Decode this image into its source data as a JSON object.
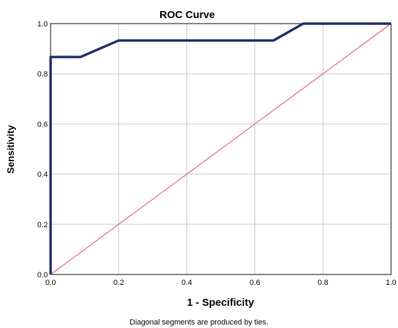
{
  "chart_data": {
    "type": "line",
    "title": "ROC Curve",
    "xlabel": "1 - Specificity",
    "ylabel": "Sensitivity",
    "footnote": "Diagonal segments are produced by ties.",
    "xlim": [
      0,
      1
    ],
    "ylim": [
      0,
      1
    ],
    "x_ticks": [
      0.0,
      0.2,
      0.4,
      0.6,
      0.8,
      1.0
    ],
    "y_ticks": [
      0.0,
      0.2,
      0.4,
      0.6,
      0.8,
      1.0
    ],
    "x_tick_labels": [
      "0.0",
      "0.2",
      "0.4",
      "0.6",
      "0.8",
      "1.0"
    ],
    "y_tick_labels": [
      "0.0",
      "0.2",
      "0.4",
      "0.6",
      "0.8",
      "1.0"
    ],
    "grid": true,
    "series": [
      {
        "color": "#1f2a6b",
        "points": [
          [
            0,
            0
          ],
          [
            0,
            0.867
          ],
          [
            0.088,
            0.867
          ],
          [
            0.2,
            0.933
          ],
          [
            0.655,
            0.933
          ],
          [
            0.742,
            1.0
          ],
          [
            1.0,
            1.0
          ]
        ]
      },
      {
        "color": "#e8728a",
        "points": [
          [
            0,
            0
          ],
          [
            1,
            1
          ]
        ]
      }
    ]
  }
}
